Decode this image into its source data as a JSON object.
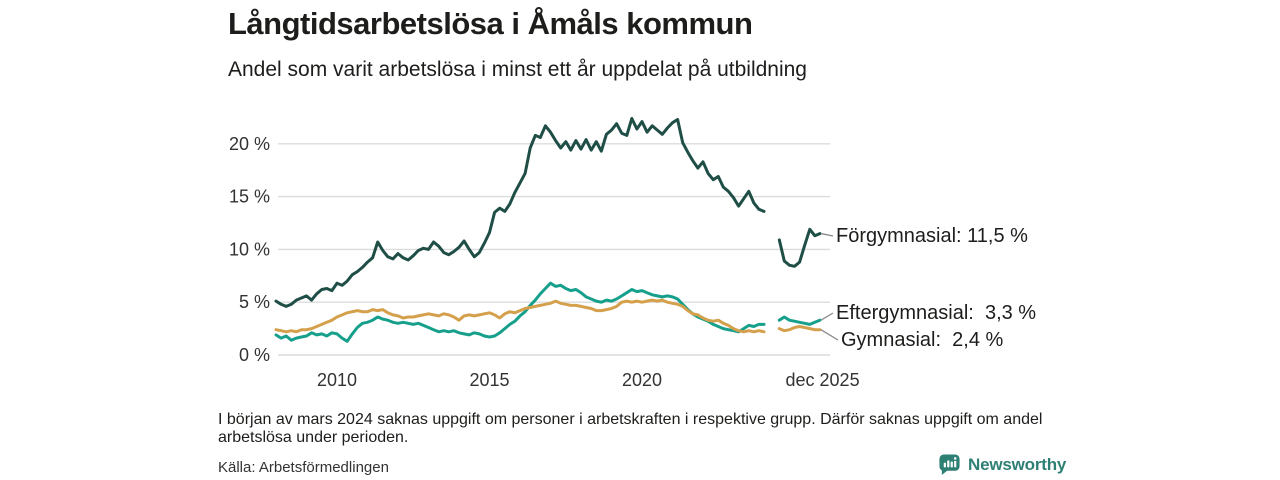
{
  "header": {
    "title": "Långtidsarbetslösa i Åmåls kommun",
    "subtitle": "Andel som varit arbetslösa i minst ett år uppdelat på utbildning"
  },
  "chart_data": {
    "type": "line",
    "title": "Långtidsarbetslösa i Åmåls kommun",
    "subtitle": "Andel som varit arbetslösa i minst ett år uppdelat på utbildning",
    "ylabel": "",
    "xlabel": "",
    "ylim": [
      0,
      23
    ],
    "grid": "horizontal",
    "x_start_year": 2008,
    "points_per_year": 6,
    "x_axis": {
      "ticks": [
        {
          "label": "2010",
          "year": 2010
        },
        {
          "label": "2015",
          "year": 2015
        },
        {
          "label": "2020",
          "year": 2020
        },
        {
          "label": "dec 2025",
          "year": 2025.92
        }
      ]
    },
    "y_axis": {
      "ticks": [
        {
          "label": "20 %",
          "value": 20
        },
        {
          "label": "15 %",
          "value": 15
        },
        {
          "label": "10 %",
          "value": 10
        },
        {
          "label": "5 %",
          "value": 5
        },
        {
          "label": "0 %",
          "value": 0
        }
      ]
    },
    "colors": {
      "grid": "#dcdcdc",
      "tick_text": "#333333",
      "connector": "#888888"
    },
    "series": [
      {
        "name": "Förgymnasial",
        "end_label": "Förgymnasial: 11,5 %",
        "end_value": 11.5,
        "color": "#1f4e46",
        "width": 3,
        "label_x": 836,
        "label_cy": 236,
        "values": [
          5.1,
          4.8,
          4.6,
          4.8,
          5.2,
          5.4,
          5.6,
          5.2,
          5.8,
          6.2,
          6.3,
          6.1,
          6.8,
          6.6,
          7.0,
          7.6,
          7.9,
          8.3,
          8.8,
          9.2,
          10.7,
          9.9,
          9.3,
          9.1,
          9.6,
          9.2,
          9.0,
          9.4,
          9.9,
          10.1,
          10.0,
          10.7,
          10.3,
          9.7,
          9.5,
          9.8,
          10.2,
          10.8,
          10.0,
          9.3,
          9.7,
          10.6,
          11.6,
          13.5,
          13.9,
          13.6,
          14.3,
          15.4,
          16.3,
          17.2,
          19.6,
          20.8,
          20.6,
          21.7,
          21.1,
          20.3,
          19.6,
          20.2,
          19.4,
          20.3,
          19.5,
          20.4,
          19.4,
          20.2,
          19.3,
          20.9,
          21.3,
          21.9,
          21.0,
          20.8,
          22.4,
          21.4,
          22.1,
          21.1,
          21.7,
          21.3,
          20.9,
          21.5,
          22.0,
          22.3,
          20.1,
          19.2,
          18.4,
          17.7,
          18.3,
          17.2,
          16.6,
          16.9,
          15.9,
          15.5,
          14.9,
          14.1,
          14.8,
          15.5,
          14.4,
          13.8,
          13.6,
          null,
          null,
          10.9,
          8.9,
          8.5,
          8.4,
          8.8,
          10.4,
          11.9,
          11.3,
          11.5
        ]
      },
      {
        "name": "Eftergymnasial",
        "end_label": "Eftergymnasial:  3,3 %",
        "end_value": 3.3,
        "color": "#16a08c",
        "width": 3,
        "label_x": 836,
        "label_cy": 313,
        "values": [
          1.9,
          1.6,
          1.8,
          1.4,
          1.6,
          1.7,
          1.8,
          2.1,
          1.9,
          2.0,
          1.8,
          2.1,
          2.0,
          1.6,
          1.3,
          2.0,
          2.6,
          3.0,
          3.1,
          3.3,
          3.6,
          3.4,
          3.3,
          3.1,
          3.0,
          3.1,
          3.0,
          2.9,
          3.0,
          2.8,
          2.6,
          2.4,
          2.2,
          2.3,
          2.2,
          2.3,
          2.1,
          2.0,
          1.9,
          2.1,
          2.0,
          1.8,
          1.7,
          1.8,
          2.1,
          2.5,
          2.9,
          3.2,
          3.7,
          4.1,
          4.7,
          5.2,
          5.8,
          6.3,
          6.8,
          6.5,
          6.6,
          6.3,
          6.1,
          6.2,
          5.9,
          5.5,
          5.3,
          5.1,
          5.0,
          5.2,
          5.1,
          5.3,
          5.6,
          5.9,
          6.2,
          6.0,
          6.1,
          5.9,
          5.7,
          5.6,
          5.5,
          5.6,
          5.5,
          5.3,
          4.8,
          4.3,
          3.9,
          3.6,
          3.4,
          3.2,
          2.9,
          2.7,
          2.5,
          2.4,
          2.3,
          2.2,
          2.5,
          2.8,
          2.7,
          2.9,
          2.9,
          null,
          null,
          3.3,
          3.6,
          3.3,
          3.2,
          3.1,
          3.0,
          2.9,
          3.1,
          3.3
        ]
      },
      {
        "name": "Gymnasial",
        "end_label": "Gymnasial:  2,4 %",
        "end_value": 2.4,
        "color": "#d4a04b",
        "width": 3,
        "label_x": 841,
        "label_cy": 340,
        "values": [
          2.4,
          2.3,
          2.2,
          2.3,
          2.2,
          2.4,
          2.4,
          2.5,
          2.7,
          2.9,
          3.1,
          3.3,
          3.6,
          3.8,
          4.0,
          4.1,
          4.2,
          4.1,
          4.1,
          4.3,
          4.2,
          4.3,
          4.0,
          3.8,
          3.7,
          3.5,
          3.6,
          3.6,
          3.7,
          3.8,
          3.9,
          3.8,
          3.7,
          3.9,
          3.8,
          3.6,
          3.3,
          3.7,
          3.8,
          3.7,
          3.8,
          3.9,
          4.0,
          3.8,
          3.5,
          3.9,
          4.1,
          4.0,
          4.2,
          4.4,
          4.5,
          4.6,
          4.7,
          4.8,
          4.9,
          5.1,
          4.9,
          4.8,
          4.7,
          4.7,
          4.6,
          4.5,
          4.4,
          4.2,
          4.2,
          4.3,
          4.4,
          4.6,
          5.0,
          5.1,
          5.0,
          5.1,
          5.0,
          5.1,
          5.2,
          5.1,
          5.2,
          5.0,
          4.9,
          4.8,
          4.6,
          4.2,
          3.9,
          3.8,
          3.5,
          3.3,
          3.2,
          3.3,
          3.0,
          2.8,
          2.5,
          2.3,
          2.2,
          2.3,
          2.2,
          2.3,
          2.2,
          null,
          null,
          2.5,
          2.3,
          2.4,
          2.6,
          2.7,
          2.6,
          2.5,
          2.4,
          2.4
        ]
      }
    ]
  },
  "footer": {
    "note": "I början av mars 2024 saknas uppgift om personer i arbetskraften i respektive grupp. Därför saknas uppgift om andel arbetslösa under perioden.",
    "source": "Källa: Arbetsförmedlingen",
    "brand": "Newsworthy"
  }
}
